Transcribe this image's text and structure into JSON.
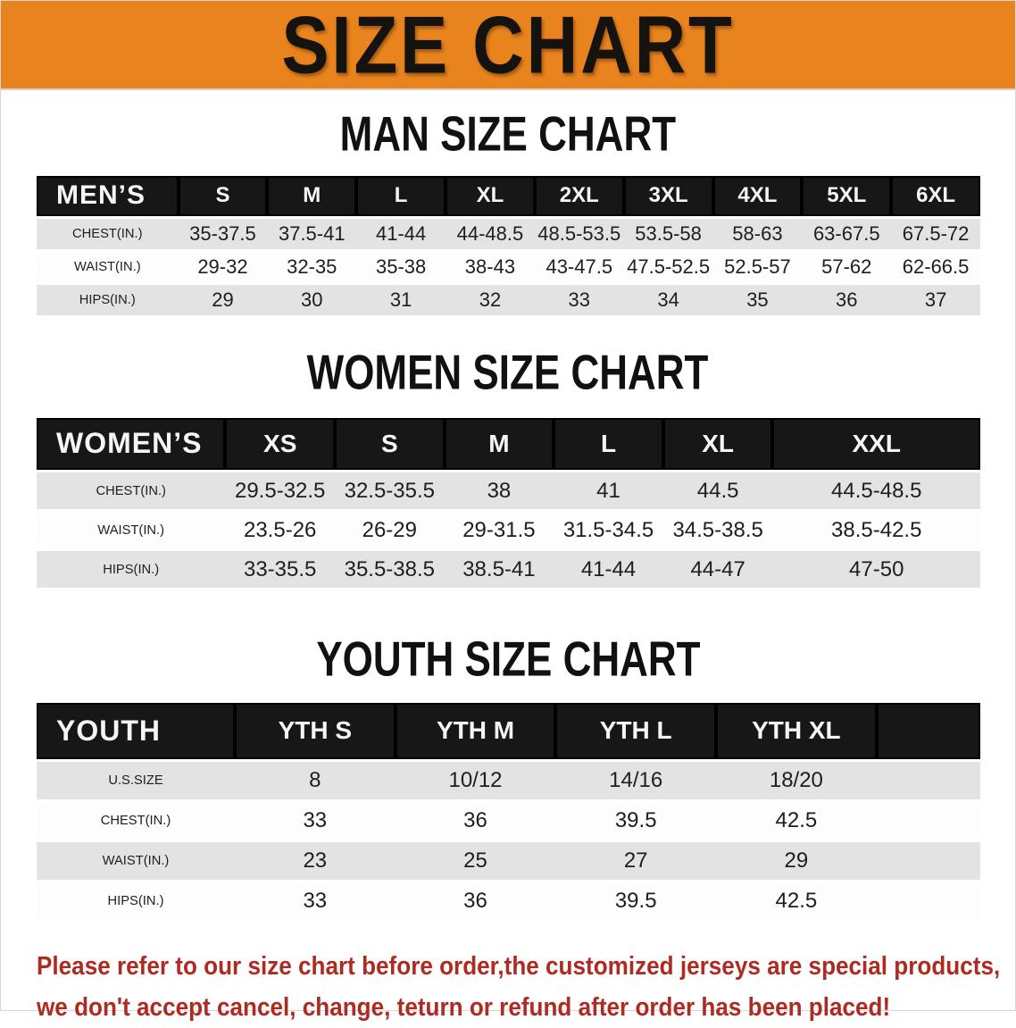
{
  "banner": {
    "title": "SIZE CHART"
  },
  "colors": {
    "banner-bg": "#e8831e",
    "header-bar": "#171717",
    "row-gray": "#e3e3e3",
    "disclaimer-red": "#ad2b23"
  },
  "sections": [
    {
      "title": "MAN SIZE CHART",
      "header_label": "MEN’S",
      "columns": [
        "S",
        "M",
        "L",
        "XL",
        "2XL",
        "3XL",
        "4XL",
        "5XL",
        "6XL"
      ],
      "rows": [
        {
          "label": "CHEST(IN.)",
          "values": [
            "35-37.5",
            "37.5-41",
            "41-44",
            "44-48.5",
            "48.5-53.5",
            "53.5-58",
            "58-63",
            "63-67.5",
            "67.5-72"
          ]
        },
        {
          "label": "WAIST(IN.)",
          "values": [
            "29-32",
            "32-35",
            "35-38",
            "38-43",
            "43-47.5",
            "47.5-52.5",
            "52.5-57",
            "57-62",
            "62-66.5"
          ]
        },
        {
          "label": "HIPS(IN.)",
          "values": [
            "29",
            "30",
            "31",
            "32",
            "33",
            "34",
            "35",
            "36",
            "37"
          ]
        }
      ]
    },
    {
      "title": "WOMEN SIZE CHART",
      "header_label": "WOMEN’S",
      "columns": [
        "XS",
        "S",
        "M",
        "L",
        "XL",
        "XXL"
      ],
      "rows": [
        {
          "label": "CHEST(IN.)",
          "values": [
            "29.5-32.5",
            "32.5-35.5",
            "38",
            "41",
            "44.5",
            "44.5-48.5"
          ]
        },
        {
          "label": "WAIST(IN.)",
          "values": [
            "23.5-26",
            "26-29",
            "29-31.5",
            "31.5-34.5",
            "34.5-38.5",
            "38.5-42.5"
          ]
        },
        {
          "label": "HIPS(IN.)",
          "values": [
            "33-35.5",
            "35.5-38.5",
            "38.5-41",
            "41-44",
            "44-47",
            "47-50"
          ]
        }
      ]
    },
    {
      "title": "YOUTH SIZE CHART",
      "header_label": "YOUTH",
      "columns": [
        "YTH S",
        "YTH M",
        "YTH L",
        "YTH XL"
      ],
      "rows": [
        {
          "label": "U.S.SIZE",
          "values": [
            "8",
            "10/12",
            "14/16",
            "18/20"
          ]
        },
        {
          "label": "CHEST(IN.)",
          "values": [
            "33",
            "36",
            "39.5",
            "42.5"
          ]
        },
        {
          "label": "WAIST(IN.)",
          "values": [
            "23",
            "25",
            "27",
            "29"
          ]
        },
        {
          "label": "HIPS(IN.)",
          "values": [
            "33",
            "36",
            "39.5",
            "42.5"
          ]
        }
      ]
    }
  ],
  "disclaimer": {
    "line1": "Please refer to our size chart before order,the customized jerseys are special products,",
    "line2": "we don't accept cancel, change, teturn or refund after order has been placed!"
  }
}
